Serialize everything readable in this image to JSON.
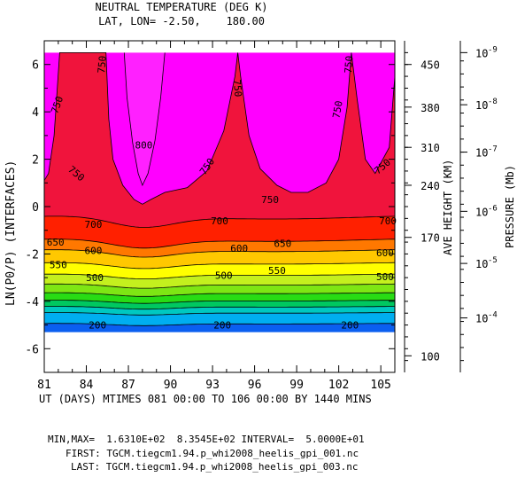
{
  "chart_data": {
    "type": "contour",
    "title": "NEUTRAL TEMPERATURE (DEG K)",
    "subtitle": "LAT, LON= -2.50,    180.00",
    "xlabel": "UT (DAYS) MTIMES 081 00:00 TO 106 00:00 BY 1440 MINS",
    "ylabel": "LN(P0/P) (INTERFACES)",
    "xlim": [
      81,
      106
    ],
    "ylim": [
      -7,
      7
    ],
    "x_ticks": [
      "81",
      "84",
      "87",
      "90",
      "93",
      "96",
      "99",
      "102",
      "105"
    ],
    "y_ticks": [
      "6",
      "4",
      "2",
      "0",
      "-2",
      "-4",
      "-6"
    ],
    "right_axis_1": {
      "label": "AVE HEIGHT (KM)",
      "ticks": [
        {
          "label": "450",
          "y": 6.0
        },
        {
          "label": "380",
          "y": 4.2
        },
        {
          "label": "310",
          "y": 2.5
        },
        {
          "label": "240",
          "y": 0.9
        },
        {
          "label": "170",
          "y": -1.3
        },
        {
          "label": "100",
          "y": -6.3
        }
      ]
    },
    "right_axis_2": {
      "label": "PRESSURE (Mb)",
      "ticks": [
        {
          "label": "10",
          "exp": "-9",
          "y": 6.5
        },
        {
          "label": "10",
          "exp": "-8",
          "y": 4.3
        },
        {
          "label": "10",
          "exp": "-7",
          "y": 2.3
        },
        {
          "label": "10",
          "exp": "-6",
          "y": -0.2
        },
        {
          "label": "10",
          "exp": "-5",
          "y": -2.4
        },
        {
          "label": "10",
          "exp": "-4",
          "y": -4.7
        }
      ]
    },
    "data_bottom": -5.3,
    "data_top": 6.5,
    "levels": [
      {
        "value": 200,
        "color": "#0b5ff0",
        "baseline": -5.0,
        "amp": 0.12,
        "label": true
      },
      {
        "value": 250,
        "color": "#00aef0",
        "baseline": -4.55,
        "amp": 0.13
      },
      {
        "value": 300,
        "color": "#00c8c0",
        "baseline": -4.3,
        "amp": 0.15
      },
      {
        "value": 350,
        "color": "#00c860",
        "baseline": -4.05,
        "amp": 0.17
      },
      {
        "value": 400,
        "color": "#28dc14",
        "baseline": -3.75,
        "amp": 0.2
      },
      {
        "value": 450,
        "color": "#7ee614",
        "baseline": -3.4,
        "amp": 0.23
      },
      {
        "value": 500,
        "color": "#c4f01e",
        "baseline": -3.0,
        "amp": 0.26,
        "label": true
      },
      {
        "value": 550,
        "color": "#ffff00",
        "baseline": -2.55,
        "amp": 0.32,
        "label": true
      },
      {
        "value": 600,
        "color": "#ffc800",
        "baseline": -2.05,
        "amp": 0.4,
        "label": true
      },
      {
        "value": 650,
        "color": "#ff7800",
        "baseline": -1.65,
        "amp": 0.48,
        "label": true
      },
      {
        "value": 700,
        "color": "#ff2000",
        "baseline": -0.75,
        "amp": 0.6,
        "label": true
      },
      {
        "value": 750,
        "color": "#f0143c"
      },
      {
        "value": 800,
        "color": "#ff00ff"
      }
    ],
    "contour_750": [
      [
        81.0,
        1.1
      ],
      [
        81.3,
        1.4
      ],
      [
        81.7,
        3.0
      ],
      [
        82.1,
        6.5
      ],
      [
        85.4,
        6.5
      ],
      [
        85.6,
        3.7
      ],
      [
        85.9,
        2.0
      ],
      [
        86.6,
        0.9
      ],
      [
        87.4,
        0.3
      ],
      [
        88.0,
        0.1
      ],
      [
        88.6,
        0.3
      ],
      [
        89.6,
        0.6
      ],
      [
        91.2,
        0.8
      ],
      [
        92.6,
        1.5
      ],
      [
        93.8,
        3.2
      ],
      [
        94.6,
        5.5
      ],
      [
        94.8,
        6.5
      ],
      [
        95.0,
        5.5
      ],
      [
        95.6,
        3.0
      ],
      [
        96.4,
        1.6
      ],
      [
        97.6,
        0.9
      ],
      [
        98.6,
        0.6
      ],
      [
        99.8,
        0.6
      ],
      [
        101.1,
        1.0
      ],
      [
        102.0,
        2.0
      ],
      [
        102.6,
        4.2
      ],
      [
        102.9,
        6.5
      ],
      [
        103.3,
        4.6
      ],
      [
        103.9,
        2.0
      ],
      [
        104.6,
        1.4
      ],
      [
        105.6,
        2.5
      ],
      [
        106.0,
        5.5
      ],
      [
        106.0,
        6.5
      ]
    ],
    "contour_800": [
      [
        86.7,
        6.5
      ],
      [
        86.9,
        4.6
      ],
      [
        87.3,
        2.7
      ],
      [
        87.7,
        1.4
      ],
      [
        88.0,
        0.9
      ],
      [
        88.4,
        1.4
      ],
      [
        88.9,
        2.8
      ],
      [
        89.3,
        4.6
      ],
      [
        89.6,
        6.5
      ]
    ],
    "contour_labels": [
      {
        "text": "200",
        "x": 84.8,
        "y": -5.0
      },
      {
        "text": "200",
        "x": 93.7,
        "y": -5.0
      },
      {
        "text": "200",
        "x": 102.8,
        "y": -5.0
      },
      {
        "text": "500",
        "x": 84.6,
        "y": -3.0
      },
      {
        "text": "500",
        "x": 93.8,
        "y": -2.9
      },
      {
        "text": "500",
        "x": 105.3,
        "y": -2.95
      },
      {
        "text": "550",
        "x": 82.0,
        "y": -2.45
      },
      {
        "text": "550",
        "x": 97.6,
        "y": -2.7
      },
      {
        "text": "600",
        "x": 84.5,
        "y": -1.85
      },
      {
        "text": "600",
        "x": 94.9,
        "y": -1.75
      },
      {
        "text": "600",
        "x": 105.3,
        "y": -1.95
      },
      {
        "text": "650",
        "x": 81.8,
        "y": -1.5
      },
      {
        "text": "650",
        "x": 98.0,
        "y": -1.55
      },
      {
        "text": "700",
        "x": 84.5,
        "y": -0.75
      },
      {
        "text": "700",
        "x": 93.5,
        "y": -0.6
      },
      {
        "text": "700",
        "x": 105.5,
        "y": -0.6
      },
      {
        "text": "750",
        "x": 81.9,
        "y": 4.3,
        "rot": -70
      },
      {
        "text": "750",
        "x": 85.1,
        "y": 6.0,
        "rot": -85
      },
      {
        "text": "750",
        "x": 83.3,
        "y": 1.4,
        "rot": 40
      },
      {
        "text": "750",
        "x": 92.6,
        "y": 1.7,
        "rot": -55
      },
      {
        "text": "750",
        "x": 97.1,
        "y": 0.3
      },
      {
        "text": "750",
        "x": 101.9,
        "y": 4.1,
        "rot": -80
      },
      {
        "text": "750",
        "x": 102.7,
        "y": 6.0,
        "rot": -85
      },
      {
        "text": "750",
        "x": 105.1,
        "y": 1.7,
        "rot": -40
      },
      {
        "text": "750",
        "x": 94.8,
        "y": 5.0,
        "rot": 85
      },
      {
        "text": "800",
        "x": 88.1,
        "y": 2.6
      }
    ],
    "footer": {
      "minmax": "MIN,MAX=  1.6310E+02  8.3545E+02 INTERVAL=  5.0000E+01",
      "first": "FIRST: TGCM.tiegcm1.94.p_whi2008_heelis_gpi_001.nc",
      "last": "LAST: TGCM.tiegcm1.94.p_whi2008_heelis_gpi_003.nc"
    }
  }
}
